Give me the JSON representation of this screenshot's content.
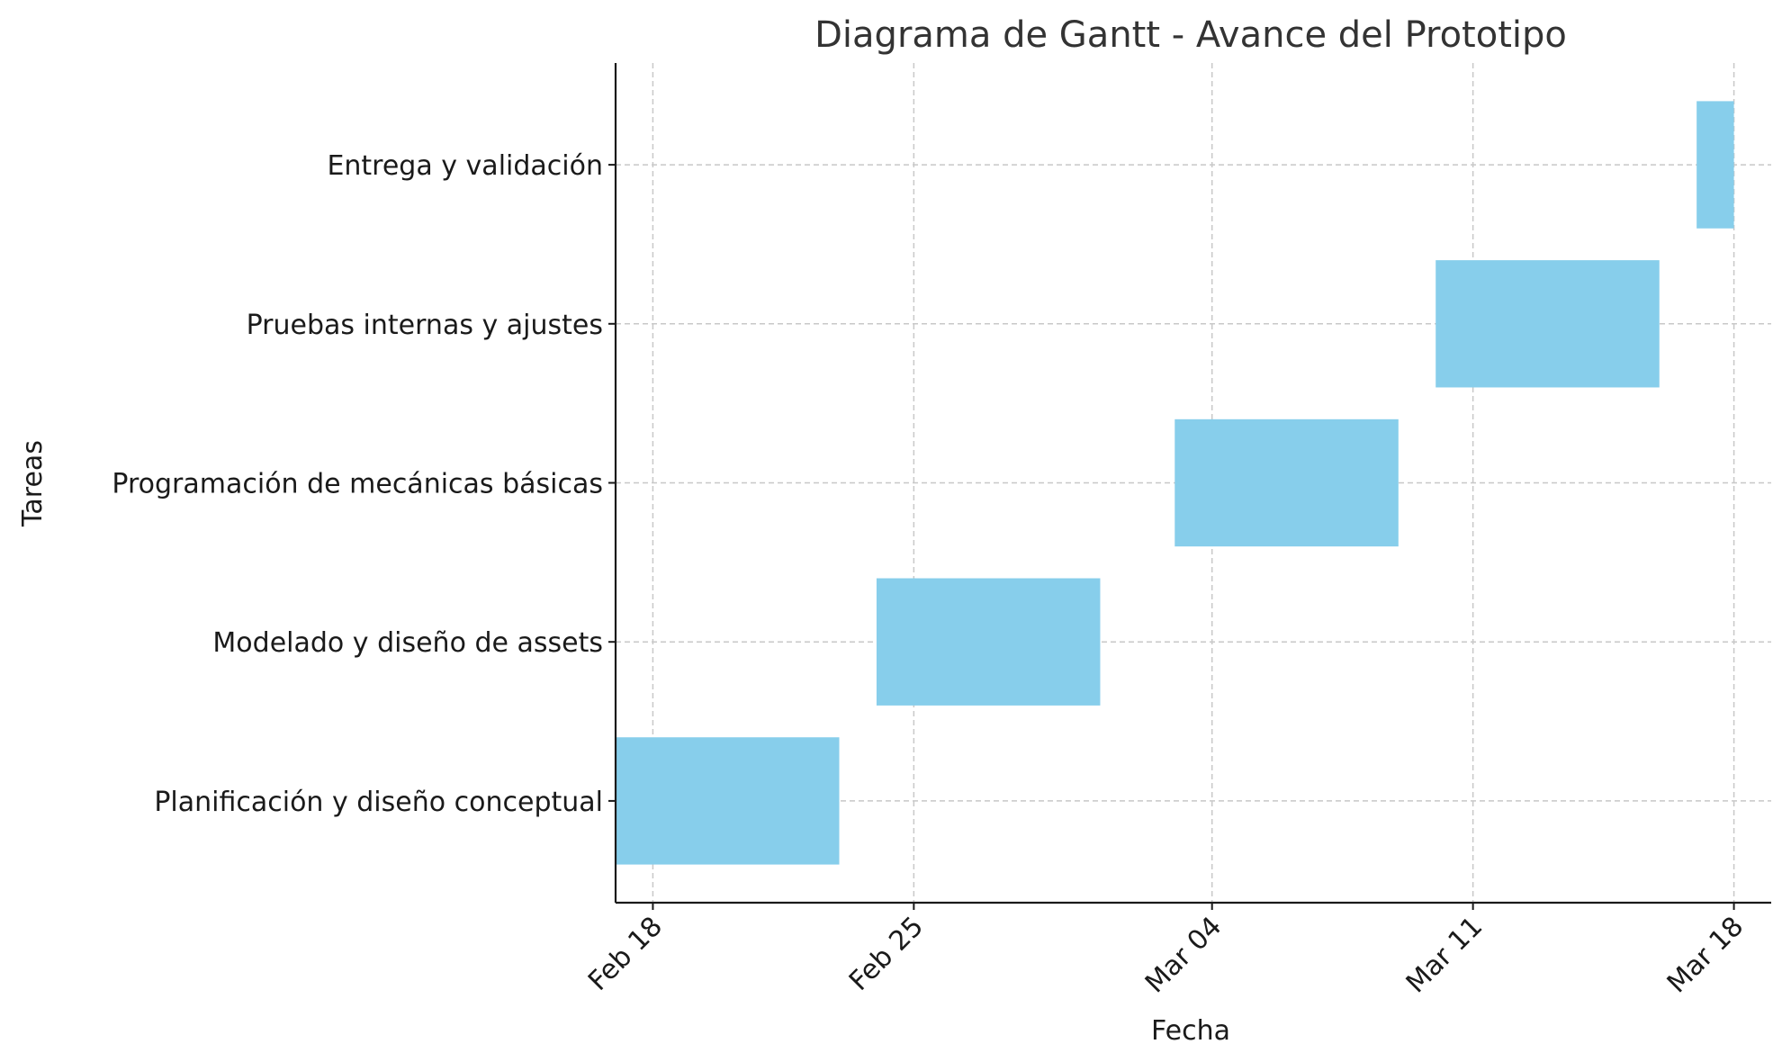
{
  "chart_data": {
    "type": "bar",
    "orientation": "horizontal",
    "title": "Diagrama de Gantt - Avance del Prototipo",
    "xlabel": "Fecha",
    "ylabel": "Tareas",
    "grid": true,
    "bar_color": "#87ceeb",
    "x_ticks": [
      {
        "date": "2024-02-18",
        "label": "Feb 18"
      },
      {
        "date": "2024-02-25",
        "label": "Feb 25"
      },
      {
        "date": "2024-03-04",
        "label": "Mar 04"
      },
      {
        "date": "2024-03-11",
        "label": "Mar 11"
      },
      {
        "date": "2024-03-18",
        "label": "Mar 18"
      }
    ],
    "xlim": [
      "2024-02-17",
      "2024-03-19"
    ],
    "tasks": [
      {
        "name": "Planificación y diseño conceptual",
        "start": "2024-02-17",
        "end": "2024-02-23"
      },
      {
        "name": "Modelado y diseño de assets",
        "start": "2024-02-24",
        "end": "2024-03-01"
      },
      {
        "name": "Programación de mecánicas básicas",
        "start": "2024-03-03",
        "end": "2024-03-09"
      },
      {
        "name": "Pruebas internas y ajustes",
        "start": "2024-03-10",
        "end": "2024-03-16"
      },
      {
        "name": "Entrega y validación",
        "start": "2024-03-17",
        "end": "2024-03-18"
      }
    ]
  }
}
